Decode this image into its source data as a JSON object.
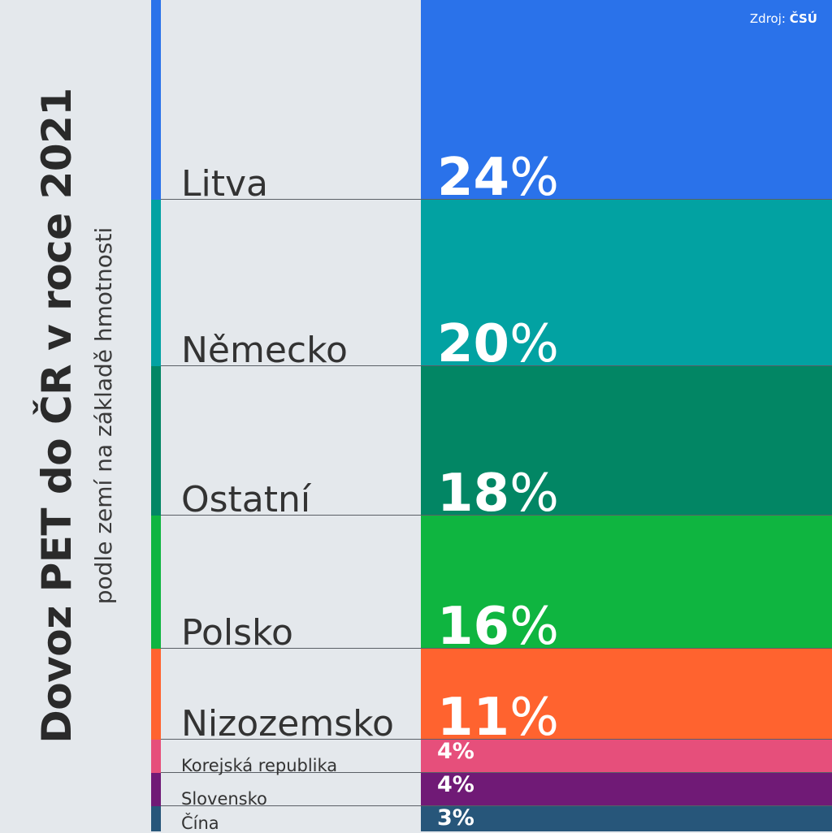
{
  "title": "Dovoz PET do ČR v roce 2021",
  "subtitle": "podle zemí na základě hmotnosti",
  "source": {
    "label": "Zdroj:",
    "value": "ČSÚ"
  },
  "chart_data": {
    "type": "bar",
    "orientation": "stacked-100",
    "categories": [
      "Litva",
      "Německo",
      "Ostatní",
      "Polsko",
      "Nizozemsko",
      "Korejská republika",
      "Slovensko",
      "Čína"
    ],
    "values": [
      24,
      20,
      18,
      16,
      11,
      4,
      4,
      3
    ],
    "value_labels": [
      "24%",
      "20%",
      "18%",
      "16%",
      "11%",
      "4%",
      "4%",
      "3%"
    ],
    "colors": [
      "#2a72ea",
      "#02a2a2",
      "#028664",
      "#0fb540",
      "#ff632f",
      "#e64f7b",
      "#701a76",
      "#27567a"
    ],
    "unit": "%"
  }
}
